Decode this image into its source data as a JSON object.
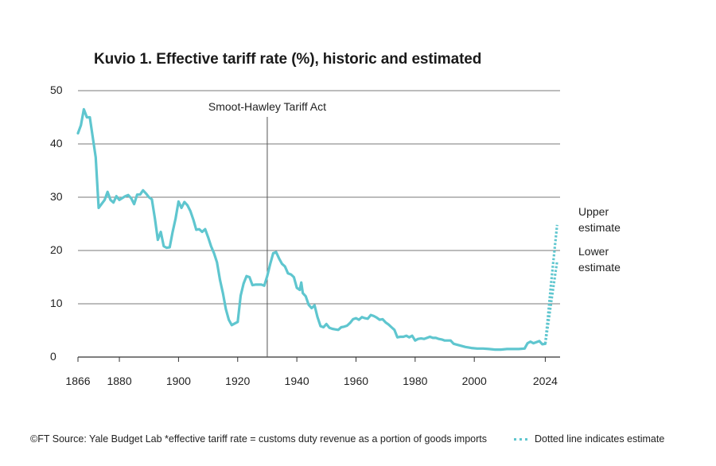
{
  "chart_data": {
    "type": "line",
    "title": "Kuvio 1. Effective tariff rate (%), historic and estimated",
    "xlabel": "",
    "ylabel": "",
    "xlim": [
      1866,
      2029
    ],
    "ylim": [
      0,
      50
    ],
    "x_ticks": [
      1866,
      1880,
      1900,
      1920,
      1940,
      1960,
      1980,
      2000,
      2024
    ],
    "y_ticks": [
      0,
      10,
      20,
      30,
      40,
      50
    ],
    "grid": true,
    "color": "#5fc6cf",
    "annotation": {
      "x": 1930,
      "label": "Smoot-Hawley Tariff Act"
    },
    "series": [
      {
        "name": "",
        "style": "solid",
        "points": [
          [
            1866,
            42
          ],
          [
            1867,
            43.5
          ],
          [
            1868,
            46.5
          ],
          [
            1869,
            45
          ],
          [
            1870,
            45
          ],
          [
            1872,
            37.5
          ],
          [
            1873,
            28
          ],
          [
            1875,
            29.5
          ],
          [
            1876,
            31
          ],
          [
            1877,
            29.5
          ],
          [
            1878,
            29
          ],
          [
            1879,
            30.2
          ],
          [
            1880,
            29.5
          ],
          [
            1882,
            30.2
          ],
          [
            1883,
            30.4
          ],
          [
            1884,
            29.8
          ],
          [
            1885,
            28.7
          ],
          [
            1886,
            30.5
          ],
          [
            1887,
            30.5
          ],
          [
            1888,
            31.3
          ],
          [
            1889,
            30.7
          ],
          [
            1890,
            30
          ],
          [
            1891,
            29.6
          ],
          [
            1892,
            26
          ],
          [
            1893,
            22
          ],
          [
            1894,
            23.5
          ],
          [
            1895,
            20.8
          ],
          [
            1896,
            20.5
          ],
          [
            1897,
            20.6
          ],
          [
            1898,
            23.5
          ],
          [
            1899,
            26
          ],
          [
            1900,
            29.2
          ],
          [
            1901,
            28
          ],
          [
            1902,
            29.1
          ],
          [
            1903,
            28.5
          ],
          [
            1904,
            27.4
          ],
          [
            1905,
            25.8
          ],
          [
            1906,
            23.9
          ],
          [
            1907,
            24
          ],
          [
            1908,
            23.5
          ],
          [
            1909,
            24
          ],
          [
            1910,
            22.5
          ],
          [
            1911,
            20.8
          ],
          [
            1912,
            19.5
          ],
          [
            1913,
            17.8
          ],
          [
            1914,
            14.5
          ],
          [
            1915,
            12
          ],
          [
            1916,
            9
          ],
          [
            1917,
            7
          ],
          [
            1918,
            6
          ],
          [
            1919,
            6.3
          ],
          [
            1920,
            6.6
          ],
          [
            1921,
            11.5
          ],
          [
            1922,
            13.8
          ],
          [
            1923,
            15.2
          ],
          [
            1924,
            15
          ],
          [
            1925,
            13.5
          ],
          [
            1926,
            13.6
          ],
          [
            1927,
            13.6
          ],
          [
            1928,
            13.6
          ],
          [
            1929,
            13.4
          ],
          [
            1930,
            15.2
          ],
          [
            1931,
            17.5
          ],
          [
            1932,
            19.5
          ],
          [
            1933,
            19.7
          ],
          [
            1934,
            18.5
          ],
          [
            1935,
            17.5
          ],
          [
            1936,
            17
          ],
          [
            1937,
            15.7
          ],
          [
            1938,
            15.5
          ],
          [
            1939,
            15
          ],
          [
            1940,
            13
          ],
          [
            1941,
            12.6
          ],
          [
            1941.5,
            14
          ],
          [
            1942,
            12
          ],
          [
            1943,
            11.4
          ],
          [
            1944,
            9.8
          ],
          [
            1945,
            9.2
          ],
          [
            1946,
            9.7
          ],
          [
            1947,
            7.5
          ],
          [
            1948,
            5.8
          ],
          [
            1949,
            5.6
          ],
          [
            1950,
            6.2
          ],
          [
            1951,
            5.5
          ],
          [
            1952,
            5.3
          ],
          [
            1953,
            5.2
          ],
          [
            1954,
            5.1
          ],
          [
            1955,
            5.6
          ],
          [
            1956,
            5.7
          ],
          [
            1957,
            5.9
          ],
          [
            1958,
            6.4
          ],
          [
            1959,
            7.1
          ],
          [
            1960,
            7.3
          ],
          [
            1961,
            7
          ],
          [
            1962,
            7.5
          ],
          [
            1963,
            7.3
          ],
          [
            1964,
            7.2
          ],
          [
            1965,
            7.9
          ],
          [
            1966,
            7.7
          ],
          [
            1967,
            7.4
          ],
          [
            1968,
            7
          ],
          [
            1969,
            7.1
          ],
          [
            1970,
            6.5
          ],
          [
            1971,
            6.1
          ],
          [
            1972,
            5.6
          ],
          [
            1973,
            5.1
          ],
          [
            1974,
            3.7
          ],
          [
            1975,
            3.8
          ],
          [
            1976,
            3.8
          ],
          [
            1977,
            4
          ],
          [
            1978,
            3.7
          ],
          [
            1979,
            4
          ],
          [
            1980,
            3.1
          ],
          [
            1981,
            3.4
          ],
          [
            1982,
            3.5
          ],
          [
            1983,
            3.4
          ],
          [
            1984,
            3.6
          ],
          [
            1985,
            3.8
          ],
          [
            1986,
            3.6
          ],
          [
            1987,
            3.6
          ],
          [
            1988,
            3.4
          ],
          [
            1989,
            3.3
          ],
          [
            1990,
            3.1
          ],
          [
            1992,
            3.1
          ],
          [
            1993,
            2.5
          ],
          [
            1995,
            2.2
          ],
          [
            1997,
            1.9
          ],
          [
            1999,
            1.7
          ],
          [
            2001,
            1.6
          ],
          [
            2003,
            1.6
          ],
          [
            2005,
            1.5
          ],
          [
            2007,
            1.4
          ],
          [
            2009,
            1.4
          ],
          [
            2011,
            1.5
          ],
          [
            2013,
            1.5
          ],
          [
            2015,
            1.5
          ],
          [
            2017,
            1.6
          ],
          [
            2018,
            2.6
          ],
          [
            2019,
            2.9
          ],
          [
            2020,
            2.6
          ],
          [
            2021,
            2.8
          ],
          [
            2022,
            3
          ],
          [
            2023,
            2.4
          ],
          [
            2024,
            2.5
          ]
        ]
      },
      {
        "name": "Upper estimate",
        "style": "dotted",
        "points": [
          [
            2024,
            2.5
          ],
          [
            2025,
            8
          ],
          [
            2026,
            14
          ],
          [
            2027,
            19.5
          ],
          [
            2028,
            24.8
          ]
        ]
      },
      {
        "name": "Lower estimate",
        "style": "dotted",
        "points": [
          [
            2024,
            2.5
          ],
          [
            2025,
            6.3
          ],
          [
            2026,
            10.3
          ],
          [
            2027,
            14.2
          ],
          [
            2028,
            18
          ]
        ]
      }
    ],
    "end_labels": [
      {
        "series": "Upper estimate",
        "lines": [
          "Upper",
          "estimate"
        ]
      },
      {
        "series": "Lower estimate",
        "lines": [
          "Lower",
          "estimate"
        ]
      }
    ]
  },
  "footer": {
    "source": "©FT Source: Yale Budget Lab *effective tariff rate = customs duty revenue as a portion of goods imports",
    "legend_text": "Dotted line indicates estimate"
  }
}
